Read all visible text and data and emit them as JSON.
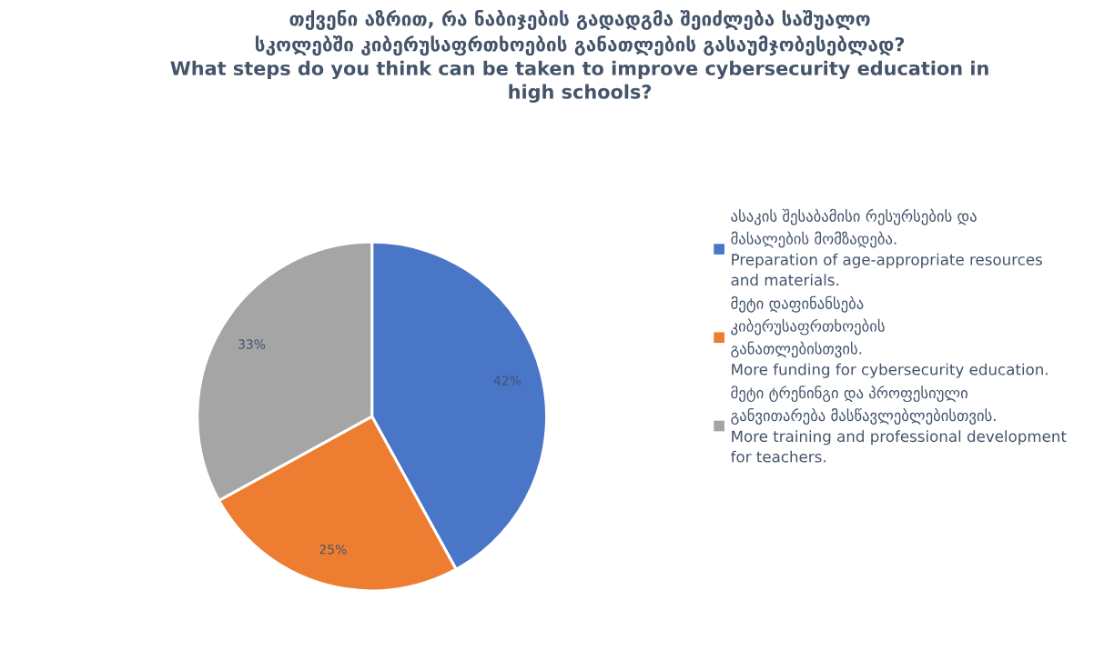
{
  "chart_data": {
    "type": "pie",
    "title": "თქვენი აზრით, რა ნაბიჯების გადადგმა შეიძლება საშუალო\nსკოლებში კიბერუსაფრთხოების განათლების გასაუმჯობესებლად?\nWhat steps do you think can be taken to improve cybersecurity education in\nhigh schools?",
    "categories": [
      "ასაკის შესაბამისი რესურსების და\nმასალების მომზადება.\nPreparation of age-appropriate resources\nand materials.",
      "მეტი დაფინანსება\nკიბერუსაფრთხოების\nგანათლებისთვის.\nMore funding for cybersecurity education.",
      "მეტი ტრენინგი და პროფესიული\nგანვითარება მასწავლებლებისთვის.\nMore training and professional development\nfor teachers."
    ],
    "values": [
      42,
      25,
      33
    ],
    "value_labels": [
      "42%",
      "25%",
      "33%"
    ],
    "colors": [
      "#4a76c8",
      "#ed7d31",
      "#a5a5a5"
    ],
    "legend": "right"
  }
}
